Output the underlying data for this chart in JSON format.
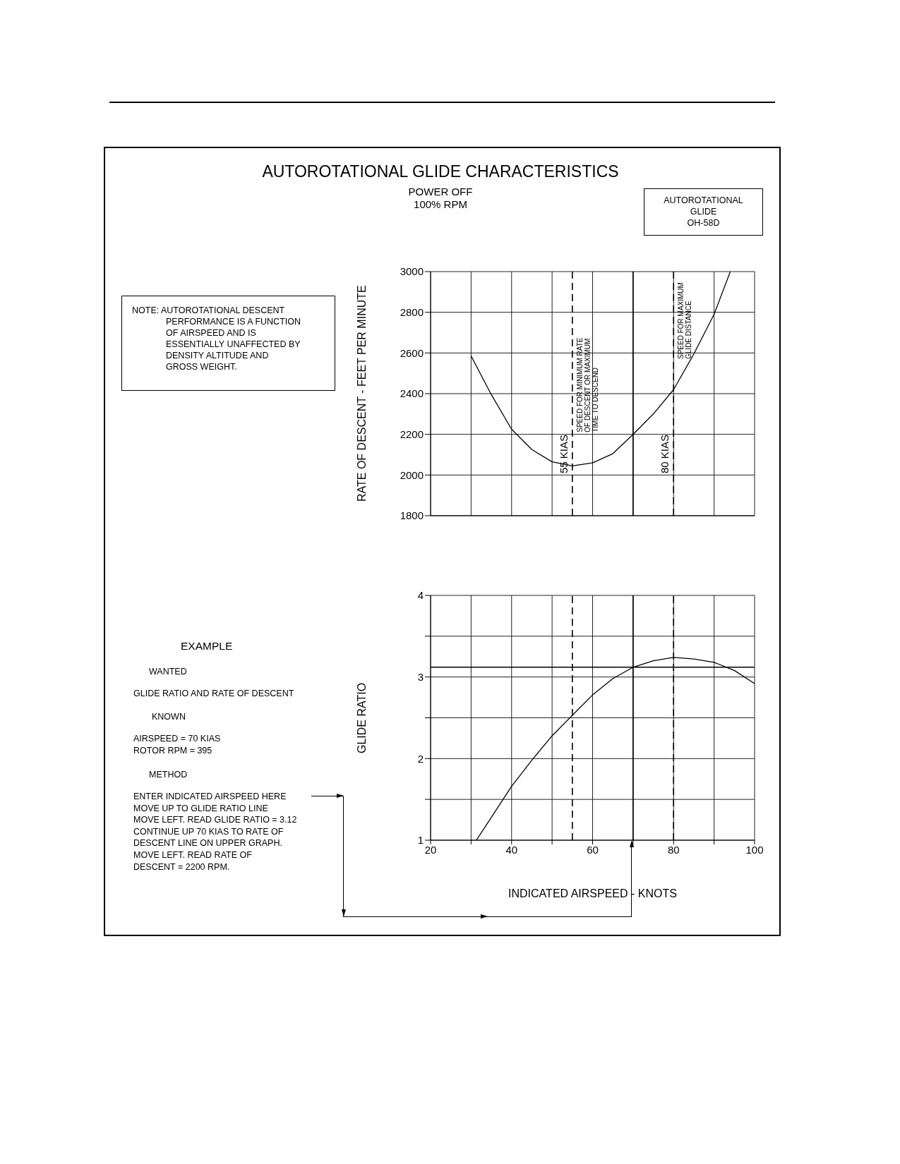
{
  "chart_data": [
    {
      "type": "line",
      "title": "AUTOROTATIONAL GLIDE CHARACTERISTICS",
      "subtitle": "POWER OFF\n100% RPM",
      "ylabel": "RATE OF DESCENT - FEET PER MINUTE",
      "annotations": [
        "AUTOROTATIONAL\nGLIDE\nOH-58D",
        "NOTE: AUTOROTATIONAL DESCENT\nPERFORMANCE IS A FUNCTION\nOF AIRSPEED AND IS\nESSENTIALLY UNAFFECTED BY\nDENSITY ALTITUDE AND\nGROSS WEIGHT.",
        {
          "text": "SPEED FOR MINIMUM RATE\nOF DESCENT OR MAXIMUM\nTIME TO DESCEND",
          "x": 55,
          "y": 2210
        },
        {
          "text": "SPEED FOR MAXIMUM\nGLIDE DISTANCE",
          "x": 80,
          "y": 2570
        }
      ],
      "x": [
        30,
        35,
        40,
        45,
        50,
        55,
        60,
        65,
        70,
        75,
        80,
        85,
        90,
        94
      ],
      "values": [
        2585,
        2395,
        2225,
        2125,
        2065,
        2045,
        2060,
        2105,
        2200,
        2300,
        2420,
        2595,
        2790,
        3000
      ],
      "color": "#000000",
      "marker": "none",
      "line_style": "solid",
      "xlim": [
        20,
        100
      ],
      "xticks": [
        20,
        {
          "value": 30,
          "label": null
        },
        40,
        {
          "value": 50,
          "label": null
        },
        60,
        {
          "value": 70,
          "label": null
        },
        80,
        {
          "value": 90,
          "label": null
        },
        100
      ],
      "ylim": [
        1800,
        3000
      ],
      "yticks": [
        1800,
        2000,
        2200,
        2400,
        2600,
        2800,
        3000
      ],
      "grid": true,
      "tick_labels": "y",
      "ref_lines": [
        {
          "axis": "x",
          "value": 55,
          "label": "55 KIAS",
          "line_style": "dashed"
        },
        {
          "axis": "x",
          "value": 80,
          "label": "80 KIAS",
          "line_style": "dashed"
        },
        {
          "axis": "x",
          "value": 70,
          "label": null,
          "line_style": "solid"
        }
      ]
    },
    {
      "type": "line",
      "xlabel": "INDICATED AIRSPEED - KNOTS",
      "ylabel": "GLIDE RATIO",
      "annotations": [
        "EXAMPLE",
        "WANTED",
        "GLIDE RATIO AND RATE OF DESCENT",
        "KNOWN",
        "AIRSPEED = 70 KIAS\nROTOR RPM = 395",
        "METHOD",
        "ENTER INDICATED AIRSPEED HERE\nMOVE UP TO GLIDE RATIO LINE\nMOVE LEFT. READ GLIDE RATIO = 3.12\nCONTINUE UP 70 KIAS TO RATE OF\nDESCENT LINE ON UPPER GRAPH.\nMOVE LEFT. READ RATE OF\nDESCENT = 2200 RPM."
      ],
      "x": [
        31.3,
        35,
        40,
        45,
        50,
        55,
        60,
        65,
        70,
        75,
        80,
        85,
        90,
        95,
        100
      ],
      "values": [
        1,
        1.28,
        1.66,
        1.98,
        2.28,
        2.53,
        2.78,
        2.98,
        3.12,
        3.2,
        3.24,
        3.22,
        3.18,
        3.08,
        2.92
      ],
      "color": "#000000",
      "marker": "none",
      "line_style": "solid",
      "xlim": [
        20,
        100
      ],
      "xticks": [
        20,
        {
          "value": 30,
          "label": null
        },
        40,
        {
          "value": 50,
          "label": null
        },
        60,
        {
          "value": 70,
          "label": null
        },
        80,
        {
          "value": 90,
          "label": null
        },
        100
      ],
      "ylim": [
        1,
        4
      ],
      "yticks": [
        1,
        {
          "value": 1.5,
          "label": null
        },
        2,
        {
          "value": 2.5,
          "label": null
        },
        3,
        {
          "value": 3.5,
          "label": null
        },
        4
      ],
      "grid": true,
      "ref_lines": [
        {
          "axis": "x",
          "value": 55,
          "label": null,
          "line_style": "dashed"
        },
        {
          "axis": "x",
          "value": 80,
          "label": null,
          "line_style": "dashed"
        },
        {
          "axis": "x",
          "value": 70,
          "label": null,
          "line_style": "solid"
        },
        {
          "axis": "y",
          "value": 3.12,
          "label": null,
          "line_style": "solid"
        }
      ]
    }
  ]
}
